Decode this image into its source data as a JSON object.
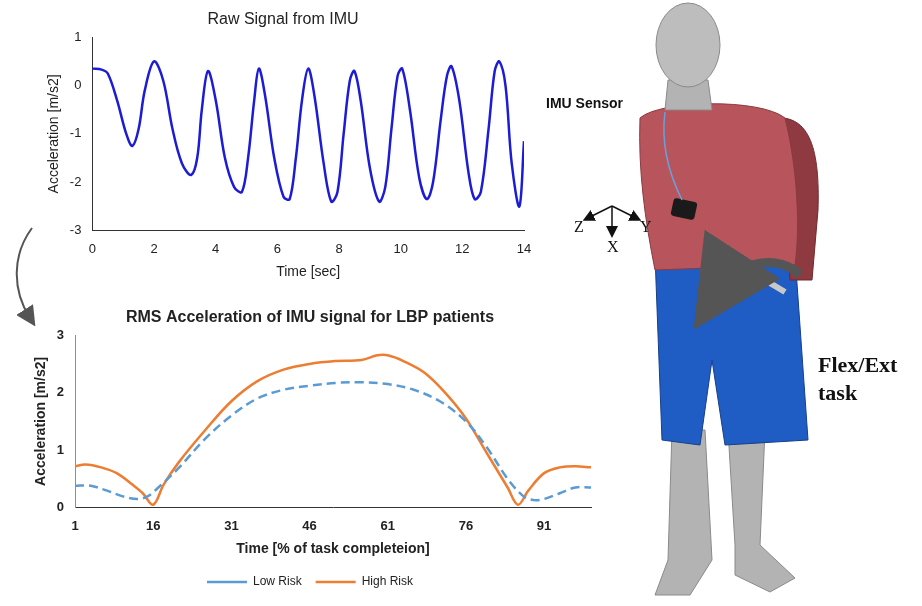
{
  "chart_data": [
    {
      "type": "line",
      "title": "Raw Signal from IMU",
      "x_label": "Time [sec]",
      "y_label": "Acceleration [m/s2]",
      "xlim": [
        0,
        14
      ],
      "xticks": [
        0,
        2,
        4,
        6,
        8,
        10,
        12,
        14
      ],
      "ylim": [
        -3,
        1
      ],
      "yticks": [
        -3,
        -2,
        -1,
        0,
        1
      ],
      "grid": false,
      "series": [
        {
          "color": "#1c1cd6",
          "line_style": "solid",
          "x": [
            0,
            0.3,
            0.5,
            0.8,
            1.1,
            1.3,
            1.5,
            1.7,
            2.0,
            2.3,
            2.6,
            2.9,
            3.2,
            3.4,
            3.55,
            3.75,
            4.0,
            4.3,
            4.6,
            4.85,
            5.05,
            5.25,
            5.4,
            5.6,
            5.9,
            6.2,
            6.4,
            6.6,
            6.8,
            7.0,
            7.2,
            7.5,
            7.75,
            7.95,
            8.15,
            8.35,
            8.5,
            8.7,
            9.0,
            9.3,
            9.5,
            9.7,
            9.9,
            10.05,
            10.3,
            10.6,
            10.85,
            11.05,
            11.3,
            11.5,
            11.65,
            11.9,
            12.2,
            12.4,
            12.6,
            12.85,
            13.05,
            13.2,
            13.4,
            13.6,
            13.85,
            14.0
          ],
          "values": [
            0.35,
            0.33,
            0.25,
            -0.3,
            -1.0,
            -1.25,
            -0.9,
            -0.1,
            0.5,
            0.1,
            -0.9,
            -1.6,
            -1.85,
            -1.5,
            -0.5,
            0.3,
            -0.3,
            -1.5,
            -2.1,
            -2.2,
            -1.5,
            -0.3,
            0.35,
            -0.2,
            -1.5,
            -2.3,
            -2.35,
            -1.5,
            -0.3,
            0.35,
            -0.2,
            -1.6,
            -2.4,
            -2.2,
            -1.0,
            0.1,
            0.3,
            -0.3,
            -1.7,
            -2.4,
            -2.1,
            -0.9,
            0.2,
            0.35,
            -0.5,
            -1.9,
            -2.35,
            -2.0,
            -0.7,
            0.2,
            0.4,
            -0.3,
            -1.8,
            -2.35,
            -2.2,
            -0.9,
            0.3,
            0.5,
            0.0,
            -1.6,
            -2.5,
            -1.15
          ]
        }
      ]
    },
    {
      "type": "line",
      "title": "RMS Acceleration of IMU signal for LBP patients",
      "x_label": "Time [% of task completeion]",
      "y_label": "Acceleration [m/s2]",
      "xlim": [
        1,
        100
      ],
      "xticks": [
        1,
        16,
        31,
        46,
        61,
        76,
        91
      ],
      "ylim": [
        0,
        3
      ],
      "yticks": [
        0,
        1,
        2,
        3
      ],
      "grid": false,
      "legend": "bottom",
      "series": [
        {
          "name": "Low Risk",
          "color": "#5b9bd5",
          "line_style": "dashed",
          "x": [
            1,
            4,
            7,
            10,
            13,
            15,
            17,
            21,
            26,
            31,
            36,
            41,
            46,
            51,
            56,
            61,
            66,
            71,
            76,
            80,
            84,
            87,
            89,
            91,
            94,
            97,
            100
          ],
          "values": [
            0.38,
            0.38,
            0.3,
            0.2,
            0.15,
            0.2,
            0.35,
            0.7,
            1.2,
            1.6,
            1.9,
            2.05,
            2.12,
            2.17,
            2.18,
            2.15,
            2.05,
            1.85,
            1.5,
            1.05,
            0.5,
            0.2,
            0.13,
            0.15,
            0.25,
            0.35,
            0.35
          ]
        },
        {
          "name": "High Risk",
          "color": "#ed7d31",
          "line_style": "solid",
          "x": [
            1,
            3,
            6,
            9,
            12,
            14,
            16,
            18,
            21,
            26,
            31,
            36,
            41,
            46,
            51,
            56,
            59,
            61,
            64,
            68,
            72,
            76,
            80,
            84,
            86,
            88,
            91,
            94,
            97,
            100
          ],
          "values": [
            0.72,
            0.75,
            0.7,
            0.6,
            0.4,
            0.25,
            0.05,
            0.4,
            0.8,
            1.35,
            1.85,
            2.2,
            2.4,
            2.5,
            2.55,
            2.57,
            2.65,
            2.65,
            2.55,
            2.35,
            2.0,
            1.55,
            0.95,
            0.35,
            0.05,
            0.3,
            0.6,
            0.7,
            0.72,
            0.7
          ]
        }
      ]
    }
  ],
  "diagram": {
    "sensor_label": "IMU Sensor",
    "axes": [
      "Z",
      "X",
      "Y"
    ],
    "task_label": "Flex/Ext task"
  }
}
